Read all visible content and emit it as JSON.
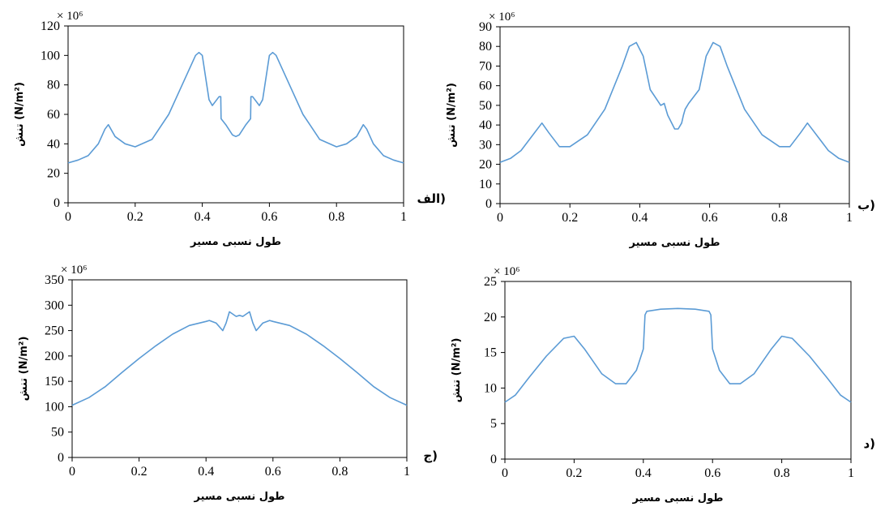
{
  "chart_data": [
    {
      "type": "line",
      "panel_label": "الف)",
      "xlabel": "طول نسبی مسیر",
      "ylabel": "تنش (N/m²)",
      "y_scale_label": "× 10⁶",
      "xlim": [
        0,
        1
      ],
      "ylim": [
        0,
        120
      ],
      "x_ticks": [
        "0",
        "0.2",
        "0.4",
        "0.6",
        "0.8",
        "1"
      ],
      "y_ticks": [
        "0",
        "20",
        "40",
        "60",
        "80",
        "100",
        "120"
      ],
      "color": "#5b9bd5",
      "series": [
        {
          "x": [
            0,
            0.03,
            0.06,
            0.09,
            0.11,
            0.12,
            0.14,
            0.17,
            0.2,
            0.25,
            0.3,
            0.35,
            0.38,
            0.39,
            0.4,
            0.42,
            0.43,
            0.45,
            0.455,
            0.456,
            0.47,
            0.49,
            0.5,
            0.51,
            0.53,
            0.544,
            0.545,
            0.55,
            0.57,
            0.58,
            0.6,
            0.61,
            0.62,
            0.65,
            0.7,
            0.75,
            0.8,
            0.83,
            0.86,
            0.88,
            0.89,
            0.91,
            0.94,
            0.97,
            1
          ],
          "y": [
            27,
            29,
            32,
            40,
            50,
            53,
            45,
            40,
            38,
            43,
            60,
            85,
            100,
            102,
            100,
            70,
            66,
            72,
            72,
            57,
            53,
            46,
            45,
            46,
            53,
            57,
            72,
            72,
            66,
            70,
            100,
            102,
            100,
            85,
            60,
            43,
            38,
            40,
            45,
            53,
            50,
            40,
            32,
            29,
            27
          ]
        }
      ]
    },
    {
      "type": "line",
      "panel_label": "ب)",
      "xlabel": "طول نسبی مسیر",
      "ylabel": "تنش (N/m²)",
      "y_scale_label": "× 10⁶",
      "xlim": [
        0,
        1
      ],
      "ylim": [
        0,
        90
      ],
      "x_ticks": [
        "0",
        "0.2",
        "0.4",
        "0.6",
        "0.8",
        "1"
      ],
      "y_ticks": [
        "0",
        "10",
        "20",
        "30",
        "40",
        "50",
        "60",
        "70",
        "80",
        "90"
      ],
      "color": "#5b9bd5",
      "series": [
        {
          "x": [
            0,
            0.03,
            0.06,
            0.09,
            0.12,
            0.14,
            0.17,
            0.2,
            0.25,
            0.3,
            0.35,
            0.37,
            0.39,
            0.41,
            0.43,
            0.46,
            0.47,
            0.475,
            0.48,
            0.5,
            0.51,
            0.52,
            0.525,
            0.53,
            0.54,
            0.57,
            0.59,
            0.61,
            0.63,
            0.65,
            0.7,
            0.75,
            0.8,
            0.83,
            0.86,
            0.88,
            0.91,
            0.94,
            0.97,
            1
          ],
          "y": [
            21,
            23,
            27,
            34,
            41,
            36,
            29,
            29,
            35,
            48,
            70,
            80,
            82,
            75,
            58,
            50,
            51,
            48,
            45,
            38,
            38,
            41,
            45,
            48,
            51,
            58,
            75,
            82,
            80,
            70,
            48,
            35,
            29,
            29,
            36,
            41,
            34,
            27,
            23,
            21
          ]
        }
      ]
    },
    {
      "type": "line",
      "panel_label": "ج)",
      "xlabel": "طول نسبی مسیر",
      "ylabel": "تنش (N/m²)",
      "y_scale_label": "× 10⁶",
      "xlim": [
        0,
        1
      ],
      "ylim": [
        0,
        350
      ],
      "x_ticks": [
        "0",
        "0.2",
        "0.4",
        "0.6",
        "0.8",
        "1"
      ],
      "y_ticks": [
        "0",
        "50",
        "100",
        "150",
        "200",
        "250",
        "300",
        "350"
      ],
      "color": "#5b9bd5",
      "series": [
        {
          "x": [
            0,
            0.05,
            0.1,
            0.15,
            0.2,
            0.25,
            0.3,
            0.35,
            0.4,
            0.41,
            0.43,
            0.45,
            0.46,
            0.47,
            0.49,
            0.5,
            0.51,
            0.53,
            0.54,
            0.55,
            0.57,
            0.59,
            0.6,
            0.65,
            0.7,
            0.75,
            0.8,
            0.85,
            0.9,
            0.95,
            1
          ],
          "y": [
            103,
            118,
            140,
            168,
            195,
            220,
            243,
            260,
            268,
            270,
            265,
            250,
            265,
            287,
            278,
            280,
            278,
            287,
            265,
            250,
            265,
            270,
            268,
            260,
            243,
            220,
            195,
            168,
            140,
            118,
            103
          ]
        }
      ]
    },
    {
      "type": "line",
      "panel_label": "د)",
      "xlabel": "طول نسبی مسیر",
      "ylabel": "تنش (N/m²)",
      "y_scale_label": "× 10⁶",
      "xlim": [
        0,
        1
      ],
      "ylim": [
        0,
        25
      ],
      "x_ticks": [
        "0",
        "0.2",
        "0.4",
        "0.6",
        "0.8",
        "1"
      ],
      "y_ticks": [
        "0",
        "5",
        "10",
        "15",
        "20",
        "25"
      ],
      "color": "#5b9bd5",
      "series": [
        {
          "x": [
            0,
            0.03,
            0.07,
            0.12,
            0.17,
            0.2,
            0.23,
            0.28,
            0.32,
            0.35,
            0.38,
            0.4,
            0.405,
            0.41,
            0.45,
            0.5,
            0.55,
            0.59,
            0.595,
            0.6,
            0.62,
            0.65,
            0.68,
            0.72,
            0.77,
            0.8,
            0.83,
            0.88,
            0.93,
            0.97,
            1
          ],
          "y": [
            8,
            9,
            11.5,
            14.5,
            17,
            17.3,
            15.5,
            12,
            10.6,
            10.6,
            12.5,
            15.5,
            20.3,
            20.8,
            21.1,
            21.2,
            21.1,
            20.8,
            20.3,
            15.5,
            12.5,
            10.6,
            10.6,
            12,
            15.5,
            17.3,
            17,
            14.5,
            11.5,
            9,
            8
          ]
        }
      ]
    }
  ]
}
